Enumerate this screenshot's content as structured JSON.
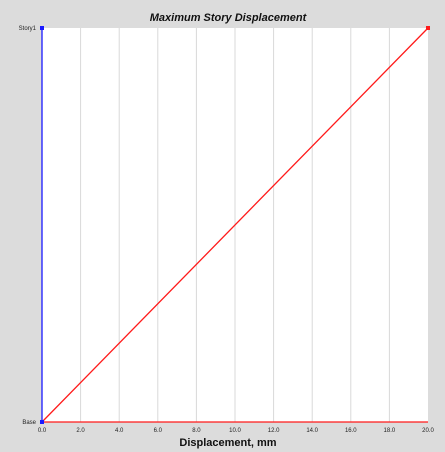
{
  "chart_data": {
    "type": "line",
    "title": "Maximum Story Displacement",
    "xlabel": "Displacement, mm",
    "ylabel": "",
    "xlim": [
      0,
      20
    ],
    "x_ticks": [
      "0.0",
      "2.0",
      "4.0",
      "6.0",
      "8.0",
      "10.0",
      "12.0",
      "14.0",
      "16.0",
      "18.0",
      "20.0"
    ],
    "y_categories": [
      "Base",
      "Story1"
    ],
    "grid": true,
    "series": [
      {
        "color": "#ff1a1a",
        "x": [
          0,
          20
        ],
        "y": [
          "Base",
          "Story1"
        ]
      },
      {
        "color": "#1a1aff",
        "x": [
          0,
          0
        ],
        "y": [
          "Base",
          "Story1"
        ]
      }
    ]
  }
}
